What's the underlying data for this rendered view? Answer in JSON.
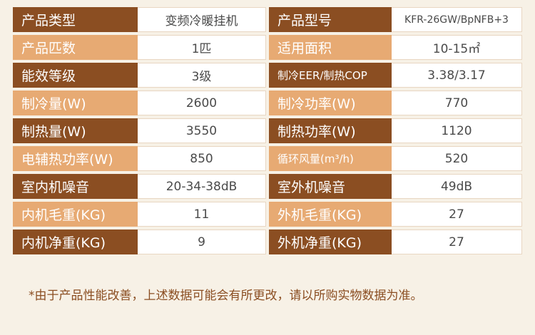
{
  "rows": [
    {
      "k1": "产品类型",
      "v1": "变频冷暖挂机",
      "k2": "产品型号",
      "v2": "KFR-26GW/BpNFB+3"
    },
    {
      "k1": "产品匹数",
      "v1": "1匹",
      "k2": "适用面积",
      "v2": "10-15㎡"
    },
    {
      "k1": "能效等级",
      "v1": "3级",
      "k2": "制冷EER/制热COP",
      "v2": "3.38/3.17"
    },
    {
      "k1": "制冷量(W)",
      "v1": "2600",
      "k2": "制冷功率(W)",
      "v2": "770"
    },
    {
      "k1": "制热量(W)",
      "v1": "3550",
      "k2": "制热功率(W)",
      "v2": "1120"
    },
    {
      "k1": "电辅热功率(W)",
      "v1": "850",
      "k2": "循环风量(m³/h)",
      "v2": "520"
    },
    {
      "k1": "室内机噪音",
      "v1": "20-34-38dB",
      "k2": "室外机噪音",
      "v2": "49dB"
    },
    {
      "k1": "内机毛重(KG)",
      "v1": "11",
      "k2": "外机毛重(KG)",
      "v2": "27"
    },
    {
      "k1": "内机净重(KG)",
      "v1": "9",
      "k2": "外机净重(KG)",
      "v2": "27"
    }
  ],
  "footnote": "*由于产品性能改善，上述数据可能会有所更改，请以所购实物数据为准。",
  "colors": {
    "label_dark": "#8b4e22",
    "label_light": "#e7aa73",
    "background": "#f7f1e6"
  }
}
